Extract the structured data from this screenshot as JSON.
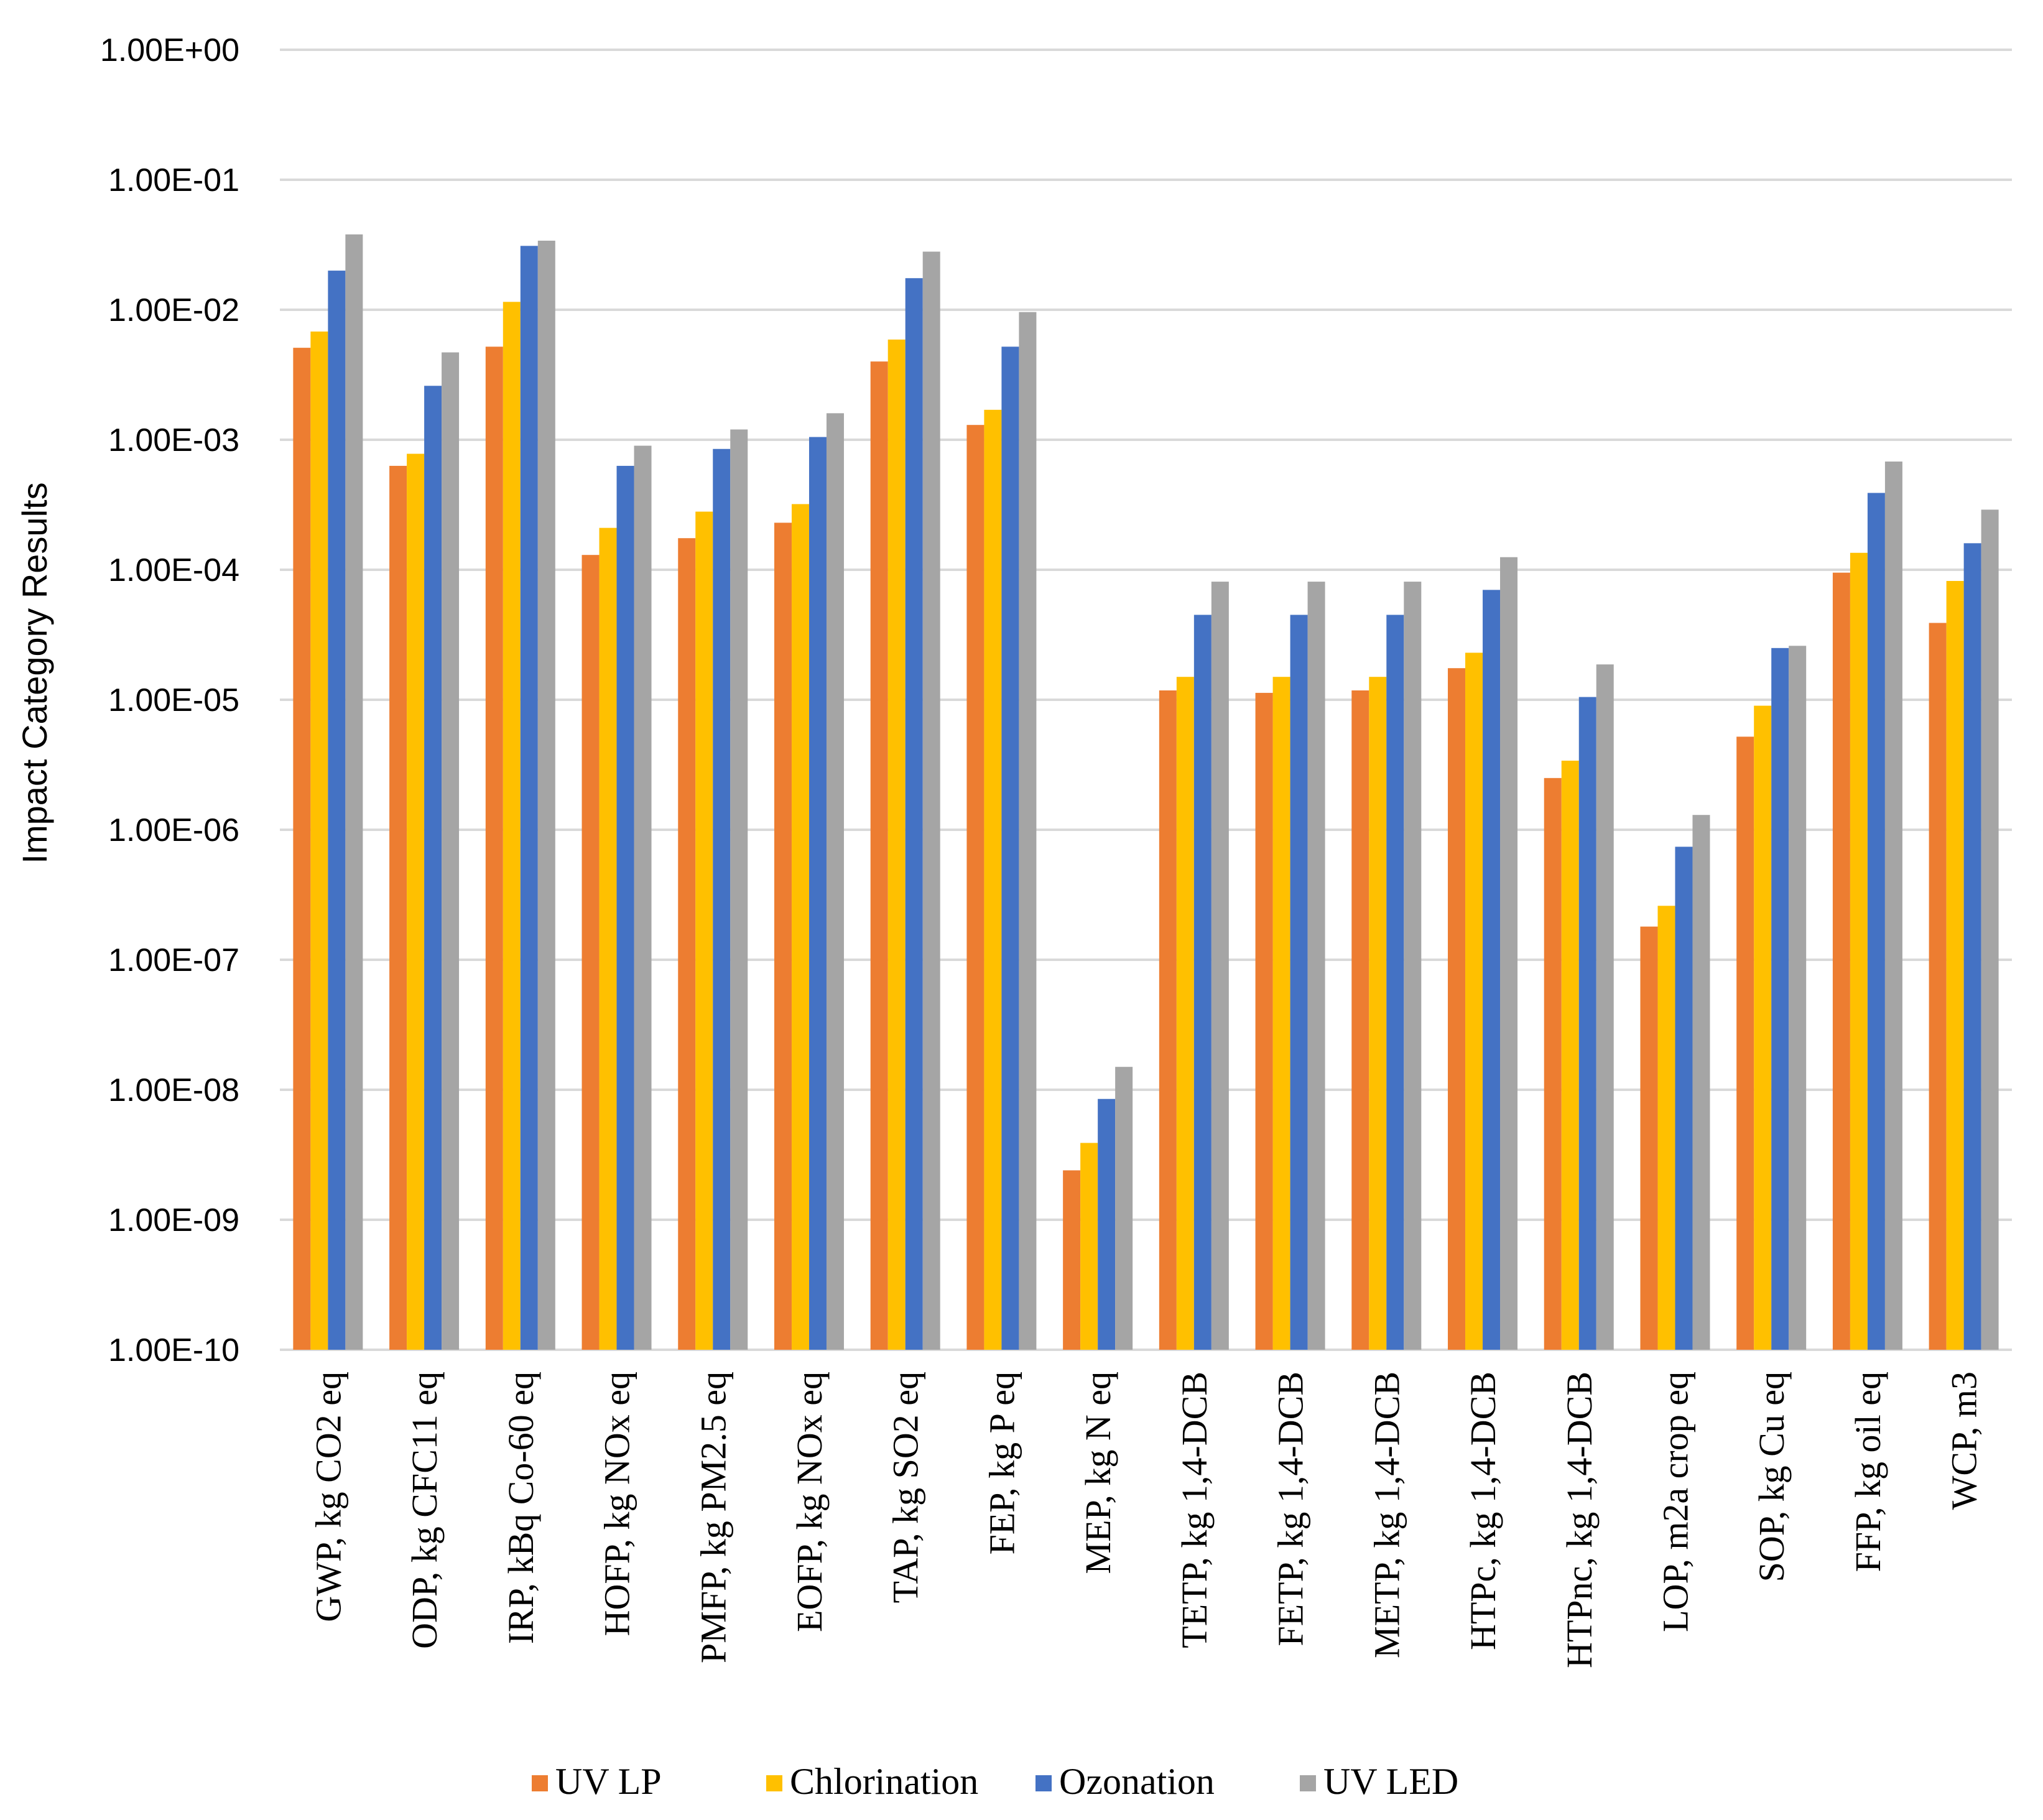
{
  "chart_data": {
    "type": "bar",
    "title": "",
    "xlabel": "",
    "ylabel": "Impact Category Results",
    "yscale": "log",
    "ylim": [
      1e-10,
      1
    ],
    "yticks": [
      1,
      0.1,
      0.01,
      0.001,
      0.0001,
      1e-05,
      1e-06,
      1e-07,
      1e-08,
      1e-09,
      1e-10
    ],
    "ytick_labels": [
      "1.00E+00",
      "1.00E-01",
      "1.00E-02",
      "1.00E-03",
      "1.00E-04",
      "1.00E-05",
      "1.00E-06",
      "1.00E-07",
      "1.00E-08",
      "1.00E-09",
      "1.00E-10"
    ],
    "grid": true,
    "legend_position": "bottom",
    "categories": [
      "GWP, kg CO2 eq",
      "ODP, kg CFC11 eq",
      "IRP, kBq Co-60 eq",
      "HOFP, kg NOx eq",
      "PMFP, kg PM2.5 eq",
      "EOFP, kg NOx eq",
      "TAP, kg SO2 eq",
      "FEP, kg P eq",
      "MEP, kg N eq",
      "TETP, kg 1,4-DCB",
      "FETP, kg 1,4-DCB",
      "METP, kg 1,4-DCB",
      "HTPc, kg 1,4-DCB",
      "HTPnc, kg 1,4-DCB",
      "LOP, m2a crop eq",
      "SOP, kg Cu eq",
      "FFP, kg oil eq",
      "WCP, m3"
    ],
    "series": [
      {
        "name": "UV LP",
        "color": "#ED7D31",
        "values": [
          0.0051,
          0.00063,
          0.0052,
          0.00013,
          0.000175,
          0.00023,
          0.004,
          0.0013,
          2.4e-09,
          1.18e-05,
          1.13e-05,
          1.18e-05,
          1.75e-05,
          2.5e-06,
          1.8e-07,
          5.2e-06,
          9.5e-05,
          3.9e-05
        ]
      },
      {
        "name": "Chlorination",
        "color": "#FFC000",
        "values": [
          0.0068,
          0.00078,
          0.0115,
          0.00021,
          0.00028,
          0.00032,
          0.0059,
          0.0017,
          3.9e-09,
          1.5e-05,
          1.5e-05,
          1.5e-05,
          2.3e-05,
          3.4e-06,
          2.6e-07,
          9e-06,
          0.000135,
          8.2e-05
        ]
      },
      {
        "name": "Ozonation",
        "color": "#4472C4",
        "values": [
          0.02,
          0.0026,
          0.031,
          0.00063,
          0.00085,
          0.00105,
          0.0175,
          0.0052,
          8.5e-09,
          4.5e-05,
          4.5e-05,
          4.5e-05,
          7e-05,
          1.05e-05,
          7.4e-07,
          2.5e-05,
          0.00039,
          0.00016
        ]
      },
      {
        "name": "UV LED",
        "color": "#A5A5A5",
        "values": [
          0.038,
          0.0047,
          0.034,
          0.0009,
          0.0012,
          0.0016,
          0.028,
          0.0096,
          1.5e-08,
          8.1e-05,
          8.1e-05,
          8.1e-05,
          0.000125,
          1.87e-05,
          1.3e-06,
          2.6e-05,
          0.00068,
          0.00029
        ]
      }
    ]
  }
}
